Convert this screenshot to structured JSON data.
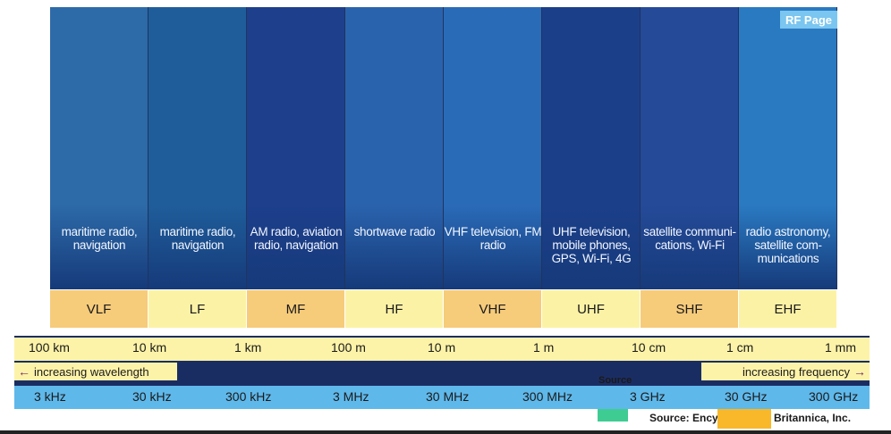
{
  "badge": "RF Page",
  "bands": [
    {
      "name": "VLF",
      "application": "maritime radio, navigation",
      "bg": "#2d6aa8",
      "label_bg": "#f6cb7a"
    },
    {
      "name": "LF",
      "application": "maritime radio, navigation",
      "bg": "#1f5d9a",
      "label_bg": "#fbf2a6"
    },
    {
      "name": "MF",
      "application": "AM radio, aviation radio, navigation",
      "bg": "#1d3f8c",
      "label_bg": "#f6cb7a"
    },
    {
      "name": "HF",
      "application": "shortwave radio",
      "bg": "#2a63ad",
      "label_bg": "#fbf2a6"
    },
    {
      "name": "VHF",
      "application": "VHF television, FM radio",
      "bg": "#2a6bb8",
      "label_bg": "#f6cb7a"
    },
    {
      "name": "UHF",
      "application": "UHF television, mobile phones, GPS, Wi-Fi, 4G",
      "bg": "#1c3f8a",
      "label_bg": "#fbf2a6"
    },
    {
      "name": "SHF",
      "application": "satellite communi- cations, Wi-Fi",
      "bg": "#254a98",
      "label_bg": "#f6cb7a"
    },
    {
      "name": "EHF",
      "application": "radio astronomy, satellite com- munications",
      "bg": "#2a7ac2",
      "label_bg": "#fbf2a6"
    }
  ],
  "wavelength_ticks": [
    "100 km",
    "10 km",
    "1 km",
    "100 m",
    "10 m",
    "1 m",
    "10 cm",
    "1 cm",
    "1 mm"
  ],
  "frequency_ticks": [
    "3 kHz",
    "30 kHz",
    "300 kHz",
    "3 MHz",
    "30 MHz",
    "300 MHz",
    "3 GHz",
    "30 GHz",
    "300 GHz"
  ],
  "wavelength_direction": "increasing wavelength",
  "frequency_direction": "increasing frequency",
  "source_label": "Source",
  "credit_left": "Source: Ency",
  "credit_right": "Britannica, Inc."
}
